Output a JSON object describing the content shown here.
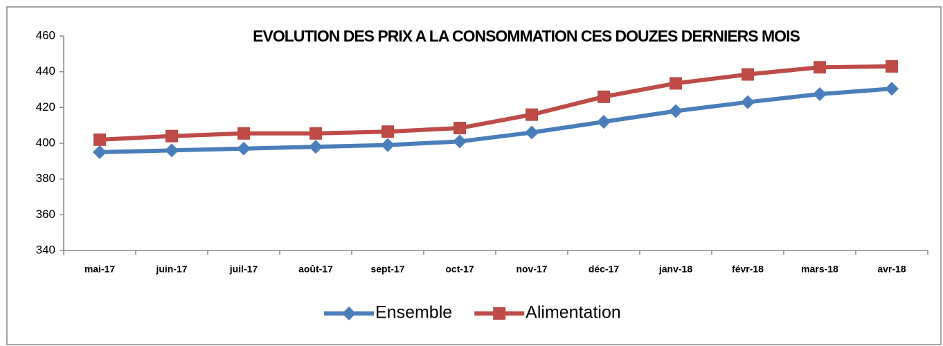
{
  "chart_data": {
    "type": "line",
    "title": "EVOLUTION DES PRIX A LA CONSOMMATION CES DOUZES DERNIERS MOIS",
    "categories": [
      "mai-17",
      "juin-17",
      "juil-17",
      "août-17",
      "sept-17",
      "oct-17",
      "nov-17",
      "déc-17",
      "janv-18",
      "févr-18",
      "mars-18",
      "avr-18"
    ],
    "series": [
      {
        "name": "Ensemble",
        "color": "#4a7ebb",
        "marker": "diamond",
        "values": [
          395,
          396,
          397,
          398,
          399,
          401,
          406,
          412,
          418,
          423,
          427.5,
          430.5
        ]
      },
      {
        "name": "Alimentation",
        "color": "#be4b48",
        "marker": "square",
        "values": [
          402,
          404,
          405.5,
          405.5,
          406.5,
          408.5,
          416,
          426,
          433.5,
          438.5,
          442.5,
          443
        ]
      }
    ],
    "ylim": [
      340,
      460
    ],
    "yticks": [
      340,
      360,
      380,
      400,
      420,
      440,
      460
    ],
    "grid": false,
    "legend": "bottom"
  }
}
